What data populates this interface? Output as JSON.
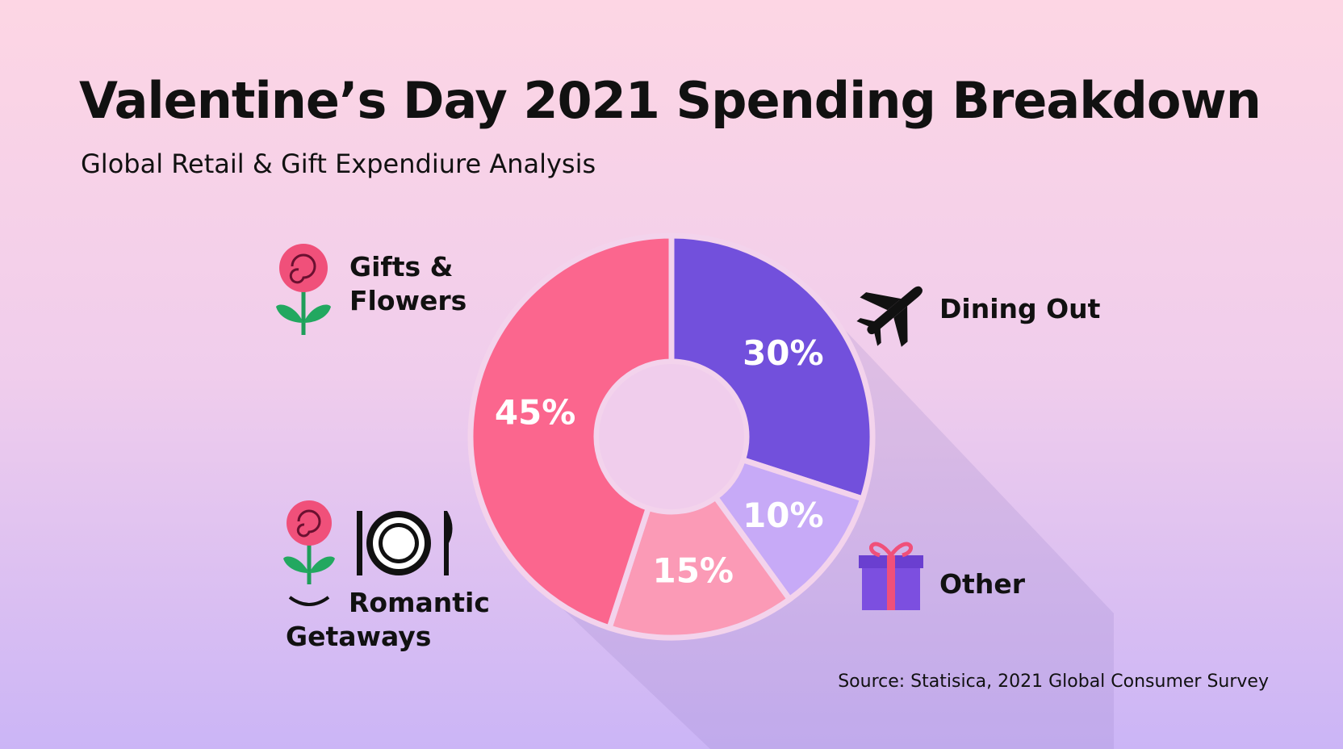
{
  "chart_data": {
    "type": "donut",
    "title": "Valentine’s Day 2021 Spending Breakdown",
    "subtitle": "Global Retail & Gift Expendiure Analysis",
    "source": "Source: Statisica, 2021 Global Consumer Survey",
    "categories": [
      "Dining Out",
      "Other",
      "Romantic Getaways",
      "Gifts & Flowers"
    ],
    "values": [
      30,
      10,
      15,
      45
    ],
    "value_labels": [
      "30%",
      "10%",
      "15%",
      "45%"
    ],
    "colors": [
      "#7250dc",
      "#c7aaf7",
      "#fb9ab6",
      "#fb668e"
    ]
  }
}
